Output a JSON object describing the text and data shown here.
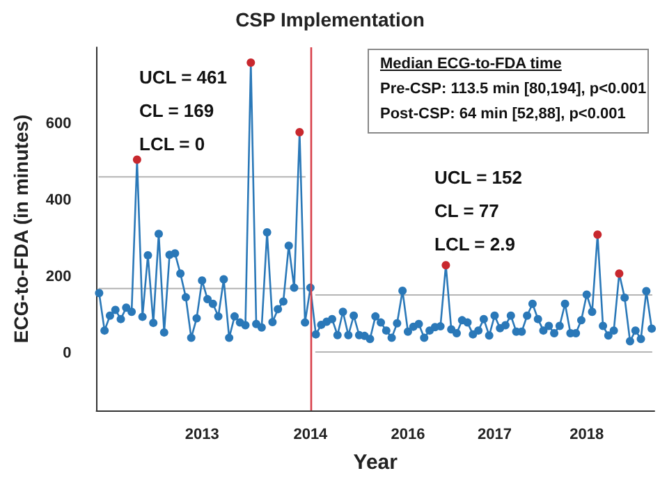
{
  "chart_data": {
    "type": "line",
    "title": "CSP Implementation",
    "xlabel": "Year",
    "ylabel": "ECG-to-FDA (in minutes)",
    "categories": [
      null,
      null,
      null,
      null,
      null,
      null,
      null,
      null,
      null,
      null,
      null,
      null,
      null,
      null,
      null,
      null,
      null,
      null,
      null,
      "2013",
      null,
      null,
      null,
      null,
      null,
      null,
      null,
      null,
      null,
      null,
      null,
      null,
      null,
      null,
      null,
      null,
      null,
      null,
      null,
      "2014",
      null,
      null,
      null,
      null,
      null,
      null,
      null,
      null,
      null,
      null,
      null,
      null,
      null,
      null,
      null,
      null,
      null,
      "2016",
      null,
      null,
      null,
      null,
      null,
      null,
      null,
      null,
      null,
      null,
      null,
      null,
      null,
      null,
      null,
      "2017",
      null,
      null,
      null,
      null,
      null,
      null,
      null,
      null,
      null,
      null,
      null,
      null,
      null,
      null,
      null,
      null,
      "2018",
      null,
      null,
      null,
      null,
      null,
      null,
      null,
      null,
      null,
      null,
      null,
      null
    ],
    "ylim": [
      -150,
      800
    ],
    "yticks": [
      0,
      200,
      400,
      600
    ],
    "grid": false,
    "marker": "circle",
    "annotations": [
      "UCL = 461",
      "CL = 169",
      "LCL = 0",
      "UCL = 152",
      "CL = 77",
      "LCL = 2.9",
      "Median ECG-to-FDA time",
      "Pre-CSP: 113.5 min [80,194], p<0.001",
      "Post-CSP: 64 min [52,88], p<0.001"
    ],
    "ref_lines": [
      {
        "axis": "x",
        "value": "2014",
        "color": "#d8404a"
      }
    ],
    "series": [
      {
        "color": "#2a78b8",
        "values": [
          157,
          59,
          98,
          113,
          89,
          119,
          108,
          506,
          95,
          256,
          79,
          312,
          54,
          257,
          261,
          208,
          146,
          40,
          91,
          190,
          141,
          129,
          96,
          193,
          40,
          96,
          80,
          73,
          760,
          76,
          67,
          316,
          81,
          115,
          135,
          281,
          171,
          578,
          80,
          171,
          49,
          74,
          82,
          89,
          47,
          108,
          47,
          98,
          47,
          45,
          37,
          96,
          80,
          59,
          40,
          78,
          163,
          56,
          69,
          76,
          40,
          59,
          68,
          70,
          230,
          62,
          52,
          86,
          80,
          49,
          59,
          89,
          46,
          98,
          65,
          73,
          98,
          56,
          56,
          98,
          129,
          89,
          59,
          71,
          52,
          71,
          129,
          52,
          52,
          86,
          153,
          108,
          310,
          71,
          46,
          59,
          208,
          145,
          31,
          59,
          37,
          162,
          64
        ],
        "colors": [
          "#2a78b8",
          "#2a78b8",
          "#2a78b8",
          "#2a78b8",
          "#2a78b8",
          "#2a78b8",
          "#2a78b8",
          "#c8282e",
          "#2a78b8",
          "#2a78b8",
          "#2a78b8",
          "#2a78b8",
          "#2a78b8",
          "#2a78b8",
          "#2a78b8",
          "#2a78b8",
          "#2a78b8",
          "#2a78b8",
          "#2a78b8",
          "#2a78b8",
          "#2a78b8",
          "#2a78b8",
          "#2a78b8",
          "#2a78b8",
          "#2a78b8",
          "#2a78b8",
          "#2a78b8",
          "#2a78b8",
          "#c8282e",
          "#2a78b8",
          "#2a78b8",
          "#2a78b8",
          "#2a78b8",
          "#2a78b8",
          "#2a78b8",
          "#2a78b8",
          "#2a78b8",
          "#c8282e",
          "#2a78b8",
          "#2a78b8",
          "#2a78b8",
          "#2a78b8",
          "#2a78b8",
          "#2a78b8",
          "#2a78b8",
          "#2a78b8",
          "#2a78b8",
          "#2a78b8",
          "#2a78b8",
          "#2a78b8",
          "#2a78b8",
          "#2a78b8",
          "#2a78b8",
          "#2a78b8",
          "#2a78b8",
          "#2a78b8",
          "#2a78b8",
          "#2a78b8",
          "#2a78b8",
          "#2a78b8",
          "#2a78b8",
          "#2a78b8",
          "#2a78b8",
          "#2a78b8",
          "#c8282e",
          "#2a78b8",
          "#2a78b8",
          "#2a78b8",
          "#2a78b8",
          "#2a78b8",
          "#2a78b8",
          "#2a78b8",
          "#2a78b8",
          "#2a78b8",
          "#2a78b8",
          "#2a78b8",
          "#2a78b8",
          "#2a78b8",
          "#2a78b8",
          "#2a78b8",
          "#2a78b8",
          "#2a78b8",
          "#2a78b8",
          "#2a78b8",
          "#2a78b8",
          "#2a78b8",
          "#2a78b8",
          "#2a78b8",
          "#2a78b8",
          "#2a78b8",
          "#2a78b8",
          "#2a78b8",
          "#c8282e",
          "#2a78b8",
          "#2a78b8",
          "#2a78b8",
          "#c8282e",
          "#2a78b8",
          "#2a78b8",
          "#2a78b8",
          "#2a78b8",
          "#2a78b8",
          "#2a78b8"
        ]
      },
      {
        "color": "#b4b4b4",
        "marker": "none",
        "values": [
          461,
          461,
          461,
          461,
          461,
          461,
          461,
          461,
          461,
          461,
          461,
          461,
          461,
          461,
          461,
          461,
          461,
          461,
          461,
          461,
          461,
          461,
          461,
          461,
          461,
          461,
          461,
          461,
          461,
          461,
          461,
          461,
          461,
          461,
          461,
          461,
          461,
          461,
          461,
          null,
          null,
          null,
          null,
          null,
          null,
          null,
          null,
          null,
          null,
          null,
          null,
          null,
          null,
          null,
          null,
          null,
          null,
          null,
          null,
          null,
          null,
          null,
          null,
          null,
          null,
          null,
          null,
          null,
          null,
          null,
          null,
          null,
          null,
          null,
          null,
          null,
          null,
          null,
          null,
          null,
          null,
          null,
          null,
          null,
          null,
          null,
          null,
          null,
          null,
          null,
          null,
          null,
          null,
          null,
          null,
          null,
          null,
          null,
          null,
          null,
          null,
          null,
          null
        ]
      },
      {
        "color": "#b4b4b4",
        "marker": "none",
        "values": [
          169,
          169,
          169,
          169,
          169,
          169,
          169,
          169,
          169,
          169,
          169,
          169,
          169,
          169,
          169,
          169,
          169,
          169,
          169,
          169,
          169,
          169,
          169,
          169,
          169,
          169,
          169,
          169,
          169,
          169,
          169,
          169,
          169,
          169,
          169,
          169,
          169,
          169,
          169,
          null,
          null,
          null,
          null,
          null,
          null,
          null,
          null,
          null,
          null,
          null,
          null,
          null,
          null,
          null,
          null,
          null,
          null,
          null,
          null,
          null,
          null,
          null,
          null,
          null,
          null,
          null,
          null,
          null,
          null,
          null,
          null,
          null,
          null,
          null,
          null,
          null,
          null,
          null,
          null,
          null,
          null,
          null,
          null,
          null,
          null,
          null,
          null,
          null,
          null,
          null,
          null,
          null,
          null,
          null,
          null,
          null,
          null,
          null,
          null,
          null,
          null,
          null,
          null
        ]
      },
      {
        "color": "#b4b4b4",
        "marker": "none",
        "values": [
          null,
          null,
          null,
          null,
          null,
          null,
          null,
          null,
          null,
          null,
          null,
          null,
          null,
          null,
          null,
          null,
          null,
          null,
          null,
          null,
          null,
          null,
          null,
          null,
          null,
          null,
          null,
          null,
          null,
          null,
          null,
          null,
          null,
          null,
          null,
          null,
          null,
          null,
          null,
          null,
          152,
          152,
          152,
          152,
          152,
          152,
          152,
          152,
          152,
          152,
          152,
          152,
          152,
          152,
          152,
          152,
          152,
          152,
          152,
          152,
          152,
          152,
          152,
          152,
          152,
          152,
          152,
          152,
          152,
          152,
          152,
          152,
          152,
          152,
          152,
          152,
          152,
          152,
          152,
          152,
          152,
          152,
          152,
          152,
          152,
          152,
          152,
          152,
          152,
          152,
          152,
          152,
          152,
          152,
          152,
          152,
          152,
          152,
          152,
          152,
          152,
          152,
          152
        ]
      },
      {
        "color": "#b4b4b4",
        "marker": "none",
        "values": [
          null,
          null,
          null,
          null,
          null,
          null,
          null,
          null,
          null,
          null,
          null,
          null,
          null,
          null,
          null,
          null,
          null,
          null,
          null,
          null,
          null,
          null,
          null,
          null,
          null,
          null,
          null,
          null,
          null,
          null,
          null,
          null,
          null,
          null,
          null,
          null,
          null,
          null,
          null,
          null,
          3,
          3,
          3,
          3,
          3,
          3,
          3,
          3,
          3,
          3,
          3,
          3,
          3,
          3,
          3,
          3,
          3,
          3,
          3,
          3,
          3,
          3,
          3,
          3,
          3,
          3,
          3,
          3,
          3,
          3,
          3,
          3,
          3,
          3,
          3,
          3,
          3,
          3,
          3,
          3,
          3,
          3,
          3,
          3,
          3,
          3,
          3,
          3,
          3,
          3,
          3,
          3,
          3,
          3,
          3,
          3,
          3,
          3,
          3,
          3,
          3,
          3,
          3
        ]
      }
    ]
  }
}
